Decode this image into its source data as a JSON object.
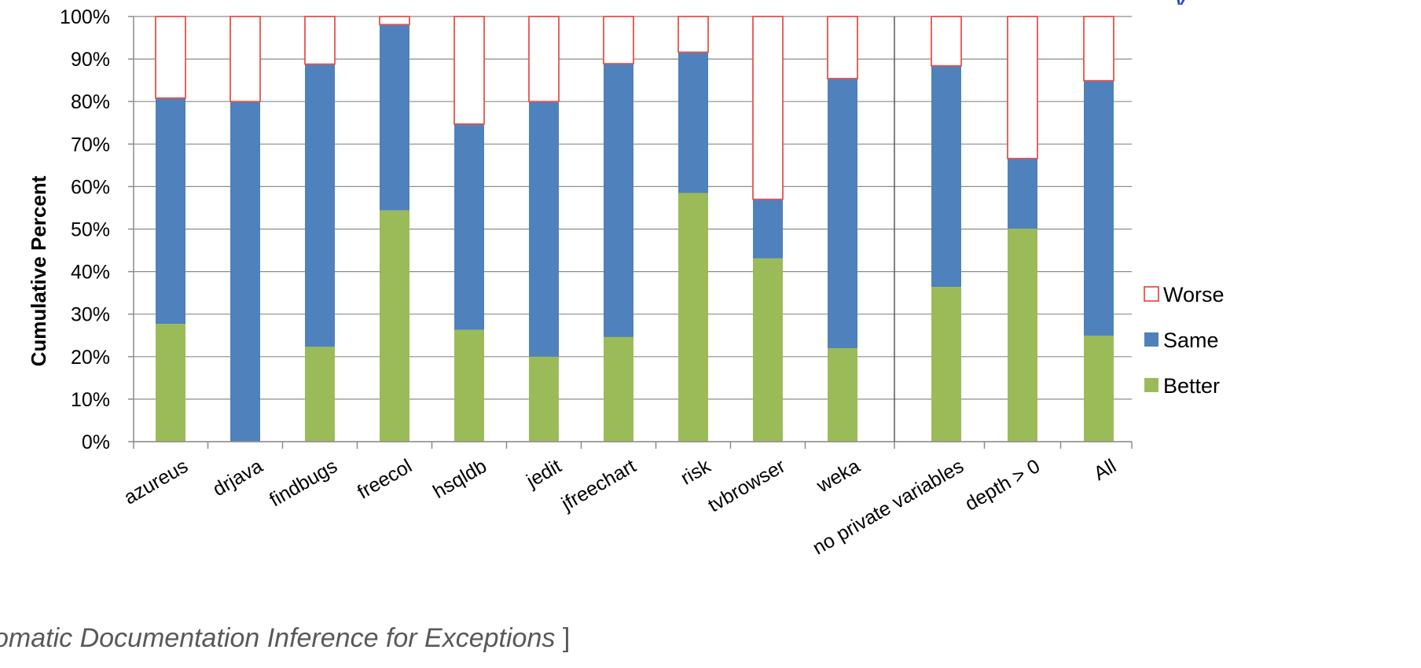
{
  "chart_data": {
    "type": "bar",
    "stacked": true,
    "ylabel": "Cumulative Percent",
    "xlabel": "",
    "ylim": [
      0,
      100
    ],
    "yticks": [
      "0%",
      "10%",
      "20%",
      "30%",
      "40%",
      "50%",
      "60%",
      "70%",
      "80%",
      "90%",
      "100%"
    ],
    "grid": true,
    "legend_position": "right",
    "categories": [
      "azureus",
      "drjava",
      "findbugs",
      "freecol",
      "hsqldb",
      "jedit",
      "jfreechart",
      "risk",
      "tvbrowser",
      "weka",
      "no private variables",
      "depth > 0",
      "All"
    ],
    "group_separator_after": "weka",
    "series": [
      {
        "name": "Better",
        "color": "#9bbb59",
        "values": [
          27.7,
          0,
          22.3,
          54.4,
          26.3,
          20.0,
          24.6,
          58.5,
          43.1,
          22.0,
          36.4,
          50.1,
          24.9
        ]
      },
      {
        "name": "Same",
        "color": "#4f81bd",
        "values": [
          53.1,
          80.0,
          66.5,
          43.7,
          48.4,
          60.0,
          64.3,
          33.1,
          13.9,
          63.4,
          52.0,
          16.5,
          60.0
        ]
      },
      {
        "name": "Worse",
        "color": "#ffffff",
        "edge": "#e5534b",
        "values": [
          19.2,
          20.0,
          11.2,
          1.9,
          25.3,
          20.0,
          11.1,
          8.4,
          43.0,
          14.6,
          11.6,
          33.4,
          15.1
        ]
      }
    ],
    "legend_order": [
      "Worse",
      "Same",
      "Better"
    ]
  },
  "caption": {
    "text": "omatic Documentation Inference for Exceptions",
    "close": " ]"
  }
}
